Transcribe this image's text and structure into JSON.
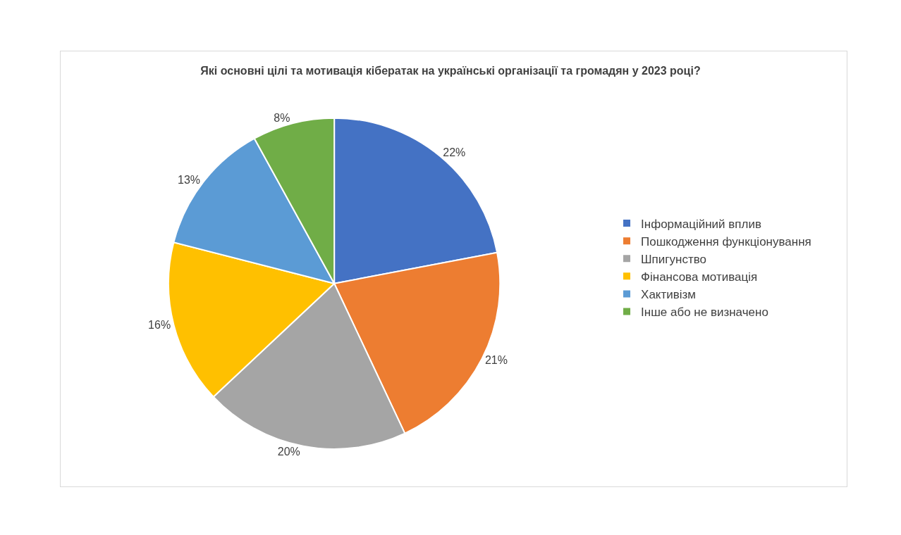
{
  "chart_data": {
    "type": "pie",
    "title": "Які основні цілі та мотивація кібератак на українські організації та громадян у 2023 році?",
    "categories": [
      "Інформаційний вплив",
      "Пошкодження функціонування",
      "Шпигунство",
      "Фінансова мотивація",
      "Хактивізм",
      "Інше або не визначено"
    ],
    "values": [
      22,
      21,
      20,
      16,
      13,
      8
    ],
    "value_labels": [
      "22%",
      "21%",
      "20%",
      "16%",
      "13%",
      "8%"
    ],
    "colors": [
      "#4472c4",
      "#ed7d31",
      "#a5a5a5",
      "#ffc000",
      "#5b9bd5",
      "#70ad47"
    ],
    "legend": "right"
  }
}
